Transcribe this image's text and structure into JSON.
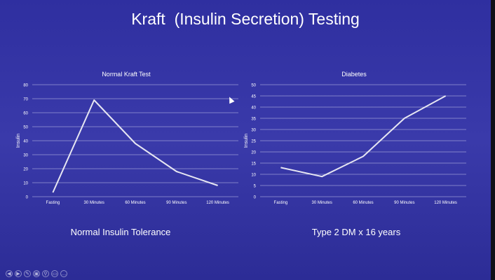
{
  "slide": {
    "title": "Kraft  (Insulin Secretion) Testing"
  },
  "chart_data": [
    {
      "type": "line",
      "title": "Normal Kraft Test",
      "ylabel": "Insulin",
      "xlabel": "",
      "categories": [
        "Fasting",
        "30 Minutes",
        "60 Minutes",
        "90 Minutes",
        "120 Minutes"
      ],
      "values": [
        3,
        69,
        38,
        18,
        8
      ],
      "ylim": [
        0,
        80
      ],
      "yticks": [
        0,
        10,
        20,
        30,
        40,
        50,
        60,
        70,
        80
      ],
      "grid": true,
      "line_color": "#e6e6f2",
      "caption": "Normal Insulin Tolerance"
    },
    {
      "type": "line",
      "title": "Diabetes",
      "ylabel": "Insulin",
      "xlabel": "",
      "categories": [
        "Fasting",
        "30 Minutes",
        "60 Minutes",
        "90 Minutes",
        "120 Minutes"
      ],
      "values": [
        13,
        9,
        18,
        35,
        45
      ],
      "ylim": [
        0,
        50
      ],
      "yticks": [
        0,
        5,
        10,
        15,
        20,
        25,
        30,
        35,
        40,
        45,
        50
      ],
      "grid": true,
      "line_color": "#e6e6f2",
      "caption": "Type 2 DM x 16 years"
    }
  ],
  "controls": [
    {
      "icon": "previous-icon",
      "glyph": "◀"
    },
    {
      "icon": "next-icon",
      "glyph": "▶"
    },
    {
      "icon": "pen-icon",
      "glyph": "✎"
    },
    {
      "icon": "slides-icon",
      "glyph": "▣"
    },
    {
      "icon": "zoom-icon",
      "glyph": "⚲"
    },
    {
      "icon": "subtitles-icon",
      "glyph": "▭"
    },
    {
      "icon": "more-icon",
      "glyph": "…"
    }
  ]
}
